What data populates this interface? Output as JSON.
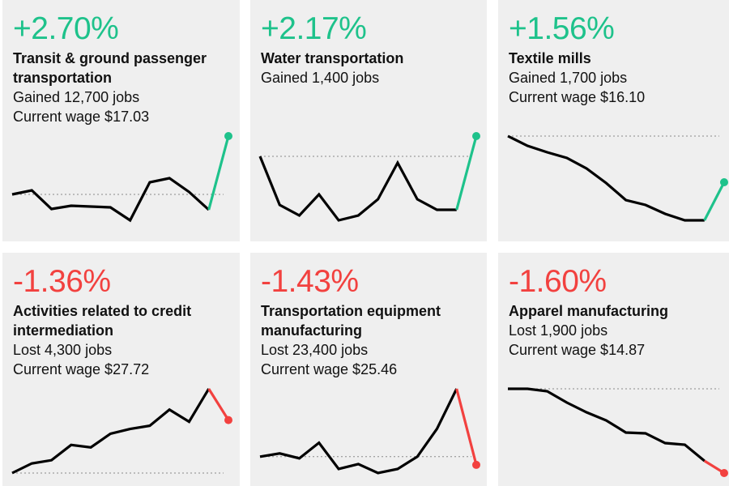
{
  "colors": {
    "gain": "#1ec28b",
    "loss": "#f2413f",
    "line": "#000000",
    "reference": "#8a8a8a"
  },
  "chart_data": [
    {
      "type": "line",
      "change": "+2.70%",
      "title": "Transit & ground passenger transportation",
      "lines": [
        "Gained 12,700 jobs",
        "Current wage $17.03"
      ],
      "direction": "gain",
      "values": [
        0,
        0.5,
        -1.8,
        -1.4,
        -1.5,
        -1.6,
        -3.2,
        1.5,
        2,
        0.3,
        -1.9,
        7.2
      ]
    },
    {
      "type": "line",
      "change": "+2.17%",
      "title": "Water transportation",
      "lines": [
        "Gained 1,400 jobs"
      ],
      "direction": "gain",
      "values": [
        0,
        -6,
        -7.3,
        -4.7,
        -7.9,
        -7.3,
        -5.3,
        -0.8,
        -5.3,
        -6.6,
        -6.6,
        2.5
      ]
    },
    {
      "type": "line",
      "change": "+1.56%",
      "title": "Textile mills",
      "lines": [
        "Gained 1,700 jobs",
        "Current wage $16.10"
      ],
      "direction": "gain",
      "values": [
        0,
        -1.2,
        -2,
        -2.7,
        -4,
        -5.8,
        -7.9,
        -8.5,
        -9.6,
        -10.4,
        -10.4,
        -5.7
      ]
    },
    {
      "type": "line",
      "change": "-1.36%",
      "title": "Activities related to credit intermediation",
      "lines": [
        "Lost 4,300 jobs",
        "Current wage $27.72"
      ],
      "direction": "loss",
      "values": [
        0,
        1.2,
        1.6,
        3.5,
        3.2,
        4.9,
        5.5,
        5.9,
        7.9,
        6.4,
        10.5,
        6.6
      ]
    },
    {
      "type": "line",
      "change": "-1.43%",
      "title": "Transportation equipment manufacturing",
      "lines": [
        "Lost 23,400 jobs",
        "Current wage $25.46"
      ],
      "direction": "loss",
      "values": [
        0,
        0.4,
        -0.2,
        1.7,
        -1.5,
        -0.9,
        -2,
        -1.5,
        0,
        3.4,
        8.3,
        -1
      ]
    },
    {
      "type": "line",
      "change": "-1.60%",
      "title": "Apparel manufacturing",
      "lines": [
        "Lost 1,900 jobs",
        "Current wage $14.87"
      ],
      "direction": "loss",
      "values": [
        0,
        0,
        -0.3,
        -1.7,
        -2.9,
        -3.9,
        -5.4,
        -5.5,
        -6.7,
        -6.9,
        -8.9,
        -10.4
      ]
    }
  ]
}
